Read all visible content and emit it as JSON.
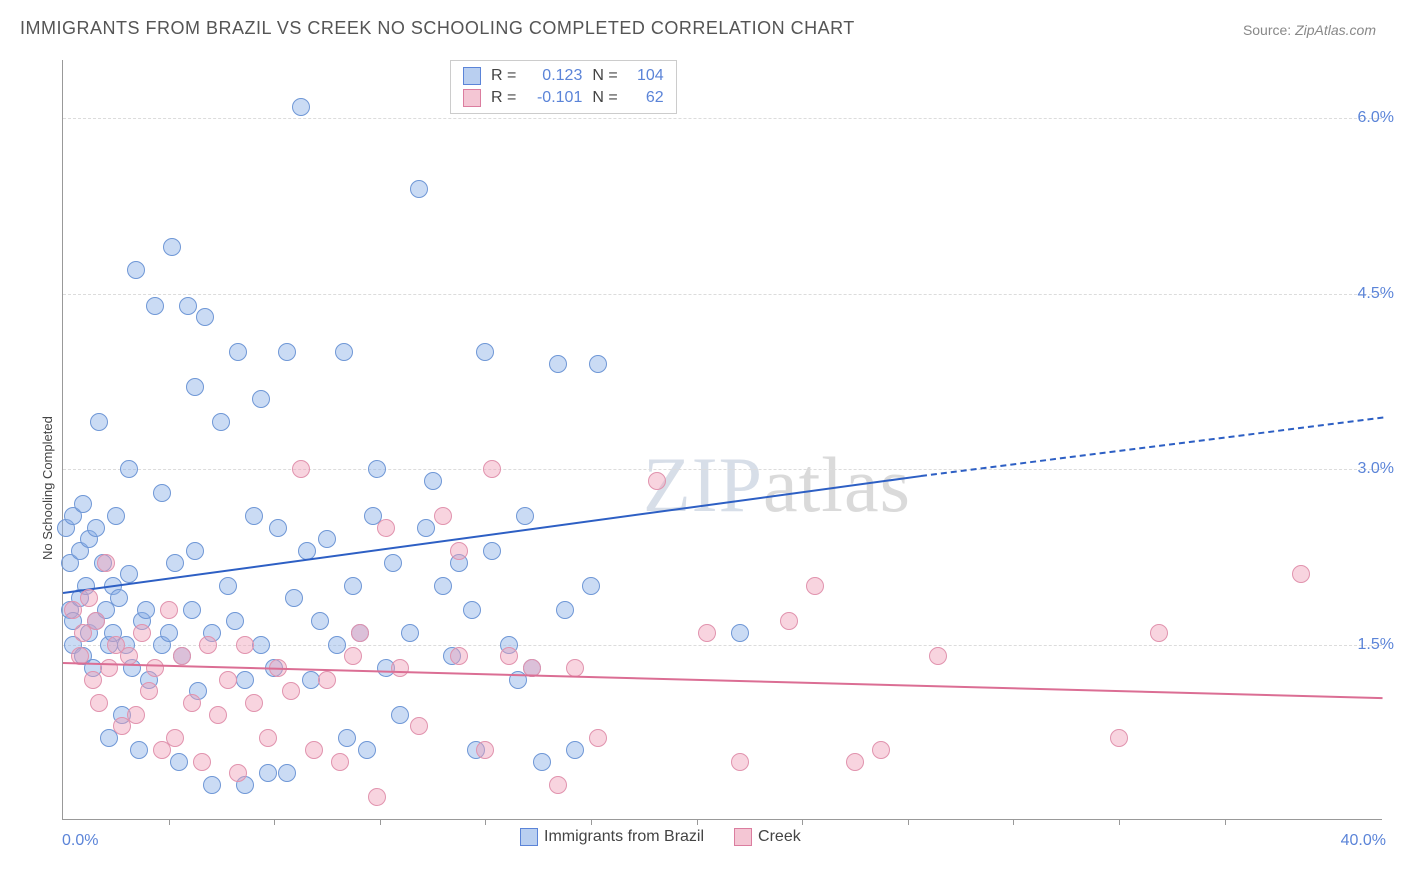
{
  "chart": {
    "type": "scatter",
    "title": "IMMIGRANTS FROM BRAZIL VS CREEK NO SCHOOLING COMPLETED CORRELATION CHART",
    "source_label": "Source:",
    "source_value": "ZipAtlas.com",
    "y_axis_label": "No Schooling Completed",
    "x_min": 0.0,
    "x_max": 40.0,
    "x_min_label": "0.0%",
    "x_max_label": "40.0%",
    "y_min": 0.0,
    "y_max": 6.5,
    "y_gridlines": [
      1.5,
      3.0,
      4.5,
      6.0
    ],
    "y_grid_labels": [
      "1.5%",
      "3.0%",
      "4.5%",
      "6.0%"
    ],
    "x_ticks": [
      3.2,
      6.4,
      9.6,
      12.8,
      16.0,
      19.2,
      22.4,
      25.6,
      28.8,
      32.0,
      35.2
    ],
    "background_color": "#ffffff",
    "grid_color": "#dcdcdc",
    "axis_color": "#999999",
    "tick_label_color": "#5b84d8",
    "watermark_zip": "ZIP",
    "watermark_atlas": "atlas",
    "series": [
      {
        "name": "Immigrants from Brazil",
        "fill_color": "rgba(138,175,230,0.45)",
        "stroke_color": "#6f97d6",
        "legend_fill": "#b9cff0",
        "legend_stroke": "#5b84d8",
        "trend_color": "#2d5fc4",
        "marker_radius": 9,
        "R": "0.123",
        "N": "104",
        "trend": {
          "x1": 0,
          "y1": 1.95,
          "x2": 26,
          "y2": 2.95,
          "x2_dash": 40,
          "y2_dash": 3.45
        },
        "points": [
          [
            0.1,
            2.5
          ],
          [
            0.2,
            1.8
          ],
          [
            0.2,
            2.2
          ],
          [
            0.3,
            1.5
          ],
          [
            0.3,
            2.6
          ],
          [
            0.3,
            1.7
          ],
          [
            0.5,
            2.3
          ],
          [
            0.5,
            1.9
          ],
          [
            0.6,
            2.7
          ],
          [
            0.6,
            1.4
          ],
          [
            0.7,
            2.0
          ],
          [
            0.8,
            1.6
          ],
          [
            0.8,
            2.4
          ],
          [
            0.9,
            1.3
          ],
          [
            1.0,
            2.5
          ],
          [
            1.0,
            1.7
          ],
          [
            1.1,
            3.4
          ],
          [
            1.2,
            2.2
          ],
          [
            1.3,
            1.8
          ],
          [
            1.4,
            0.7
          ],
          [
            1.4,
            1.5
          ],
          [
            1.5,
            2.0
          ],
          [
            1.5,
            1.6
          ],
          [
            1.6,
            2.6
          ],
          [
            1.7,
            1.9
          ],
          [
            1.8,
            0.9
          ],
          [
            1.9,
            1.5
          ],
          [
            2.0,
            2.1
          ],
          [
            2.0,
            3.0
          ],
          [
            2.1,
            1.3
          ],
          [
            2.2,
            4.7
          ],
          [
            2.3,
            0.6
          ],
          [
            2.4,
            1.7
          ],
          [
            2.5,
            1.8
          ],
          [
            2.6,
            1.2
          ],
          [
            2.8,
            4.4
          ],
          [
            3.0,
            2.8
          ],
          [
            3.0,
            1.5
          ],
          [
            3.2,
            1.6
          ],
          [
            3.3,
            4.9
          ],
          [
            3.4,
            2.2
          ],
          [
            3.5,
            0.5
          ],
          [
            3.6,
            1.4
          ],
          [
            3.8,
            4.4
          ],
          [
            3.9,
            1.8
          ],
          [
            4.0,
            3.7
          ],
          [
            4.0,
            2.3
          ],
          [
            4.1,
            1.1
          ],
          [
            4.3,
            4.3
          ],
          [
            4.5,
            1.6
          ],
          [
            4.8,
            3.4
          ],
          [
            5.0,
            2.0
          ],
          [
            5.2,
            1.7
          ],
          [
            5.3,
            4.0
          ],
          [
            5.5,
            1.2
          ],
          [
            5.8,
            2.6
          ],
          [
            6.0,
            3.6
          ],
          [
            6.0,
            1.5
          ],
          [
            6.2,
            0.4
          ],
          [
            6.4,
            1.3
          ],
          [
            6.5,
            2.5
          ],
          [
            6.8,
            4.0
          ],
          [
            7.0,
            1.9
          ],
          [
            7.2,
            6.1
          ],
          [
            7.4,
            2.3
          ],
          [
            7.5,
            1.2
          ],
          [
            7.8,
            1.7
          ],
          [
            8.0,
            2.4
          ],
          [
            8.3,
            1.5
          ],
          [
            8.5,
            4.0
          ],
          [
            8.8,
            2.0
          ],
          [
            9.0,
            1.6
          ],
          [
            9.4,
            2.6
          ],
          [
            9.5,
            3.0
          ],
          [
            9.8,
            1.3
          ],
          [
            10.0,
            2.2
          ],
          [
            10.2,
            0.9
          ],
          [
            10.5,
            1.6
          ],
          [
            10.8,
            5.4
          ],
          [
            11.0,
            2.5
          ],
          [
            11.5,
            2.0
          ],
          [
            11.8,
            1.4
          ],
          [
            12.0,
            2.2
          ],
          [
            12.4,
            1.8
          ],
          [
            12.8,
            4.0
          ],
          [
            13.0,
            2.3
          ],
          [
            13.5,
            1.5
          ],
          [
            14.0,
            2.6
          ],
          [
            14.5,
            0.5
          ],
          [
            15.0,
            3.9
          ],
          [
            15.5,
            0.6
          ],
          [
            16.0,
            2.0
          ],
          [
            15.2,
            1.8
          ],
          [
            16.2,
            3.9
          ],
          [
            12.5,
            0.6
          ],
          [
            13.8,
            1.2
          ],
          [
            14.2,
            1.3
          ],
          [
            8.6,
            0.7
          ],
          [
            9.2,
            0.6
          ],
          [
            5.5,
            0.3
          ],
          [
            6.8,
            0.4
          ],
          [
            4.5,
            0.3
          ],
          [
            20.5,
            1.6
          ],
          [
            11.2,
            2.9
          ]
        ]
      },
      {
        "name": "Creek",
        "fill_color": "rgba(240,160,185,0.45)",
        "stroke_color": "#e193ae",
        "legend_fill": "#f4c6d4",
        "legend_stroke": "#db7d9f",
        "trend_color": "#db6e94",
        "marker_radius": 9,
        "R": "-0.101",
        "N": "62",
        "trend": {
          "x1": 0,
          "y1": 1.35,
          "x2": 40,
          "y2": 1.05
        },
        "points": [
          [
            0.3,
            1.8
          ],
          [
            0.5,
            1.4
          ],
          [
            0.6,
            1.6
          ],
          [
            0.8,
            1.9
          ],
          [
            0.9,
            1.2
          ],
          [
            1.0,
            1.7
          ],
          [
            1.1,
            1.0
          ],
          [
            1.3,
            2.2
          ],
          [
            1.4,
            1.3
          ],
          [
            1.6,
            1.5
          ],
          [
            1.8,
            0.8
          ],
          [
            2.0,
            1.4
          ],
          [
            2.2,
            0.9
          ],
          [
            2.4,
            1.6
          ],
          [
            2.6,
            1.1
          ],
          [
            2.8,
            1.3
          ],
          [
            3.0,
            0.6
          ],
          [
            3.2,
            1.8
          ],
          [
            3.4,
            0.7
          ],
          [
            3.6,
            1.4
          ],
          [
            3.9,
            1.0
          ],
          [
            4.2,
            0.5
          ],
          [
            4.4,
            1.5
          ],
          [
            4.7,
            0.9
          ],
          [
            5.0,
            1.2
          ],
          [
            5.3,
            0.4
          ],
          [
            5.5,
            1.5
          ],
          [
            5.8,
            1.0
          ],
          [
            6.2,
            0.7
          ],
          [
            6.5,
            1.3
          ],
          [
            6.9,
            1.1
          ],
          [
            7.2,
            3.0
          ],
          [
            7.6,
            0.6
          ],
          [
            8.0,
            1.2
          ],
          [
            8.4,
            0.5
          ],
          [
            8.8,
            1.4
          ],
          [
            9.0,
            1.6
          ],
          [
            9.5,
            0.2
          ],
          [
            9.8,
            2.5
          ],
          [
            10.2,
            1.3
          ],
          [
            10.8,
            0.8
          ],
          [
            11.5,
            2.6
          ],
          [
            12.0,
            1.4
          ],
          [
            12.0,
            2.3
          ],
          [
            12.8,
            0.6
          ],
          [
            13.0,
            3.0
          ],
          [
            13.5,
            1.4
          ],
          [
            14.2,
            1.3
          ],
          [
            15.0,
            0.3
          ],
          [
            15.5,
            1.3
          ],
          [
            16.2,
            0.7
          ],
          [
            18.0,
            2.9
          ],
          [
            19.5,
            1.6
          ],
          [
            20.5,
            0.5
          ],
          [
            22.0,
            1.7
          ],
          [
            22.8,
            2.0
          ],
          [
            24.0,
            0.5
          ],
          [
            24.8,
            0.6
          ],
          [
            26.5,
            1.4
          ],
          [
            32.0,
            0.7
          ],
          [
            33.2,
            1.6
          ],
          [
            37.5,
            2.1
          ]
        ]
      }
    ],
    "top_legend": {
      "R_label": "R  =",
      "N_label": "N  ="
    },
    "bottom_legend_labels": [
      "Immigrants from Brazil",
      "Creek"
    ]
  }
}
